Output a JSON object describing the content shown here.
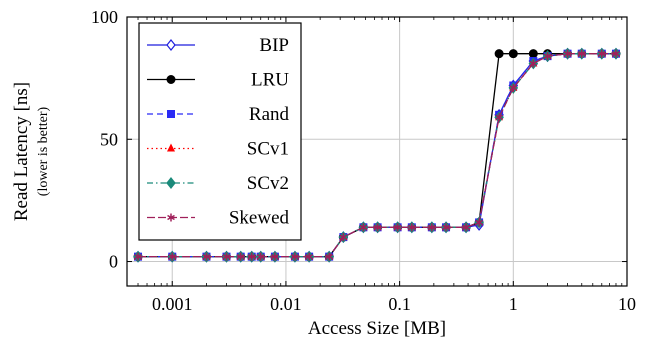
{
  "chart_data": {
    "type": "line",
    "xlabel": "Access Size [MB]",
    "ylabel": "Read Latency [ns]",
    "ylabel_note": "(lower is better)",
    "x_scale": "log",
    "xlim": [
      0.0004,
      10
    ],
    "ylim": [
      -10,
      100
    ],
    "grid": true,
    "legend_position": "top-left",
    "x_ticks": [
      0.001,
      0.01,
      0.1,
      1,
      10
    ],
    "x_tick_labels": [
      "0.001",
      "0.01",
      "0.1",
      "1",
      "10"
    ],
    "y_ticks": [
      0,
      50,
      100
    ],
    "y_tick_labels": [
      "0",
      "50",
      "100"
    ],
    "x": [
      0.0005,
      0.001,
      0.002,
      0.003,
      0.004,
      0.005,
      0.006,
      0.008,
      0.012,
      0.016,
      0.024,
      0.032,
      0.048,
      0.064,
      0.096,
      0.128,
      0.192,
      0.256,
      0.384,
      0.5,
      0.75,
      1,
      1.5,
      2,
      3,
      4,
      6,
      8
    ],
    "series": [
      {
        "name": "BIP",
        "color": "#1f1fdd",
        "marker": "diamond-open",
        "dash": "solid",
        "values": [
          2,
          2,
          2,
          2,
          2,
          2,
          2,
          2,
          2,
          2,
          2,
          10,
          14,
          14,
          14,
          14,
          14,
          14,
          14,
          15,
          60,
          72,
          82,
          84,
          85,
          85,
          85,
          85
        ]
      },
      {
        "name": "LRU",
        "color": "#000000",
        "marker": "circle",
        "dash": "solid",
        "values": [
          2,
          2,
          2,
          2,
          2,
          2,
          2,
          2,
          2,
          2,
          2,
          10,
          14,
          14,
          14,
          14,
          14,
          14,
          14,
          16,
          85,
          85,
          85,
          85,
          85,
          85,
          85,
          85
        ]
      },
      {
        "name": "Rand",
        "color": "#2a2af5",
        "marker": "square",
        "dash": "dashed",
        "values": [
          2,
          2,
          2,
          2,
          2,
          2,
          2,
          2,
          2,
          2,
          2,
          10,
          14,
          14,
          14,
          14,
          14,
          14,
          14,
          16,
          60,
          72,
          82,
          84,
          85,
          85,
          85,
          85
        ]
      },
      {
        "name": "SCv1",
        "color": "#ff0000",
        "marker": "triangle",
        "dash": "dotted",
        "values": [
          2,
          2,
          2,
          2,
          2,
          2,
          2,
          2,
          2,
          2,
          2,
          10,
          14,
          14,
          14,
          14,
          14,
          14,
          14,
          16,
          59,
          71,
          81,
          84,
          85,
          85,
          85,
          85
        ]
      },
      {
        "name": "SCv2",
        "color": "#1a8a7a",
        "marker": "diamond",
        "dash": "dashdot",
        "values": [
          2,
          2,
          2,
          2,
          2,
          2,
          2,
          2,
          2,
          2,
          2,
          10,
          14,
          14,
          14,
          14,
          14,
          14,
          14,
          16,
          59,
          71,
          81,
          84,
          85,
          85,
          85,
          85
        ]
      },
      {
        "name": "Skewed",
        "color": "#a0205a",
        "marker": "star",
        "dash": "longdash",
        "values": [
          2,
          2,
          2,
          2,
          2,
          2,
          2,
          2,
          2,
          2,
          2,
          10,
          14,
          14,
          14,
          14,
          14,
          14,
          14,
          16,
          59,
          71,
          81,
          84,
          85,
          85,
          85,
          85
        ]
      }
    ]
  }
}
